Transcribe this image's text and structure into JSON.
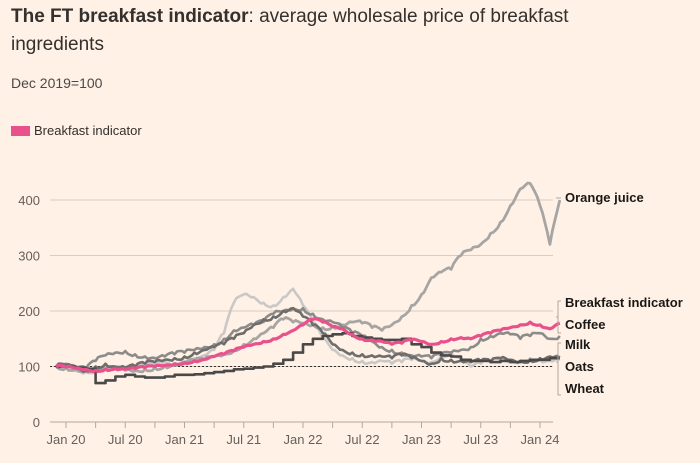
{
  "title_bold": "The FT breakfast indicator",
  "title_rest": ": average wholesale price of breakfast ingredients",
  "subtitle": "Dec 2019=100",
  "legend": [
    {
      "label": "Breakfast indicator",
      "color": "#E9518D"
    }
  ],
  "colors": {
    "background": "#FFF1E5",
    "gridline": "#D9CCC1",
    "axis": "#B3A9A0",
    "breakfast": "#E9518D",
    "orange_juice": "#A7A5A4",
    "coffee": "#8C8B8A",
    "milk": "#C9C8C7",
    "oats": "#6E6D6C",
    "wheat": "#4A4948",
    "bracket": "#B3A9A0"
  },
  "chart_data": {
    "type": "line",
    "title": "The FT breakfast indicator: average wholesale price of breakfast ingredients",
    "subtitle": "Dec 2019=100",
    "xlabel": "",
    "ylabel": "",
    "ylim": [
      0,
      400
    ],
    "yticks": [
      0,
      100,
      200,
      300,
      400
    ],
    "xticks": [
      "Jan 20",
      "Jul 20",
      "Jan 21",
      "Jul 21",
      "Jan 22",
      "Jul 22",
      "Jan 23",
      "Jul 23",
      "Jan 24"
    ],
    "baseline": 100,
    "grid": true,
    "legend_position": "top-left",
    "x_months_from_jan2020": [
      -1,
      0,
      1,
      2,
      3,
      4,
      5,
      6,
      7,
      8,
      9,
      10,
      11,
      12,
      13,
      14,
      15,
      16,
      17,
      18,
      19,
      20,
      21,
      22,
      23,
      24,
      25,
      26,
      27,
      28,
      29,
      30,
      31,
      32,
      33,
      34,
      35,
      36,
      37,
      38,
      39,
      40,
      41,
      42,
      43,
      44,
      45,
      46,
      47,
      48,
      49,
      50
    ],
    "series": [
      {
        "name": "Orange juice",
        "key": "orange_juice",
        "values": [
          100,
          98,
          96,
          92,
          90,
          95,
          96,
          94,
          92,
          95,
          98,
          100,
          102,
          105,
          110,
          112,
          118,
          122,
          130,
          140,
          150,
          160,
          170,
          185,
          180,
          178,
          175,
          170,
          172,
          175,
          180,
          178,
          170,
          165,
          175,
          190,
          210,
          230,
          260,
          270,
          275,
          300,
          310,
          320,
          340,
          360,
          390,
          420,
          430,
          390,
          320,
          400
        ]
      },
      {
        "name": "Coffee",
        "key": "coffee",
        "values": [
          100,
          105,
          98,
          95,
          110,
          120,
          125,
          128,
          122,
          118,
          115,
          118,
          122,
          125,
          130,
          135,
          140,
          150,
          165,
          170,
          175,
          180,
          195,
          200,
          205,
          205,
          195,
          185,
          180,
          170,
          160,
          155,
          145,
          135,
          130,
          125,
          120,
          118,
          115,
          120,
          125,
          130,
          135,
          150,
          155,
          160,
          158,
          150,
          155,
          160,
          150,
          155
        ]
      },
      {
        "name": "Milk",
        "key": "milk",
        "values": [
          100,
          96,
          92,
          90,
          94,
          100,
          96,
          92,
          95,
          100,
          105,
          108,
          105,
          110,
          115,
          120,
          130,
          160,
          215,
          230,
          225,
          215,
          210,
          225,
          240,
          210,
          180,
          150,
          130,
          120,
          115,
          110,
          108,
          110,
          105,
          108,
          112,
          110,
          108,
          120,
          125,
          115,
          100,
          105,
          110,
          112,
          108,
          110,
          115,
          112,
          110,
          112
        ]
      },
      {
        "name": "Oats",
        "key": "oats",
        "values": [
          100,
          102,
          98,
          92,
          100,
          105,
          100,
          98,
          100,
          105,
          108,
          112,
          115,
          118,
          125,
          130,
          135,
          140,
          150,
          160,
          175,
          185,
          190,
          200,
          205,
          190,
          175,
          160,
          140,
          130,
          125,
          122,
          120,
          118,
          115,
          120,
          115,
          110,
          105,
          115,
          112,
          110,
          108,
          110,
          108,
          115,
          112,
          110,
          112,
          115,
          118,
          116
        ]
      },
      {
        "name": "Wheat",
        "key": "wheat",
        "values": [
          100,
          100,
          98,
          96,
          70,
          75,
          82,
          85,
          82,
          80,
          80,
          82,
          85,
          85,
          86,
          88,
          90,
          92,
          95,
          96,
          98,
          100,
          105,
          112,
          125,
          140,
          150,
          155,
          158,
          160,
          155,
          152,
          150,
          148,
          148,
          150,
          140,
          135,
          125,
          120,
          118,
          112,
          110,
          110,
          108,
          110,
          108,
          110,
          112,
          112,
          115,
          115
        ]
      },
      {
        "name": "Breakfast indicator",
        "key": "breakfast",
        "values": [
          100,
          99,
          97,
          95,
          93,
          95,
          96,
          95,
          96,
          98,
          100,
          102,
          105,
          107,
          110,
          113,
          118,
          122,
          128,
          135,
          140,
          145,
          150,
          158,
          165,
          175,
          185,
          180,
          172,
          168,
          158,
          150,
          148,
          145,
          140,
          142,
          148,
          145,
          140,
          145,
          150,
          152,
          150,
          155,
          160,
          165,
          170,
          175,
          180,
          175,
          168,
          178
        ]
      }
    ],
    "end_labels": [
      "Orange juice",
      "Breakfast indicator",
      "Coffee",
      "Milk",
      "Oats",
      "Wheat"
    ]
  }
}
